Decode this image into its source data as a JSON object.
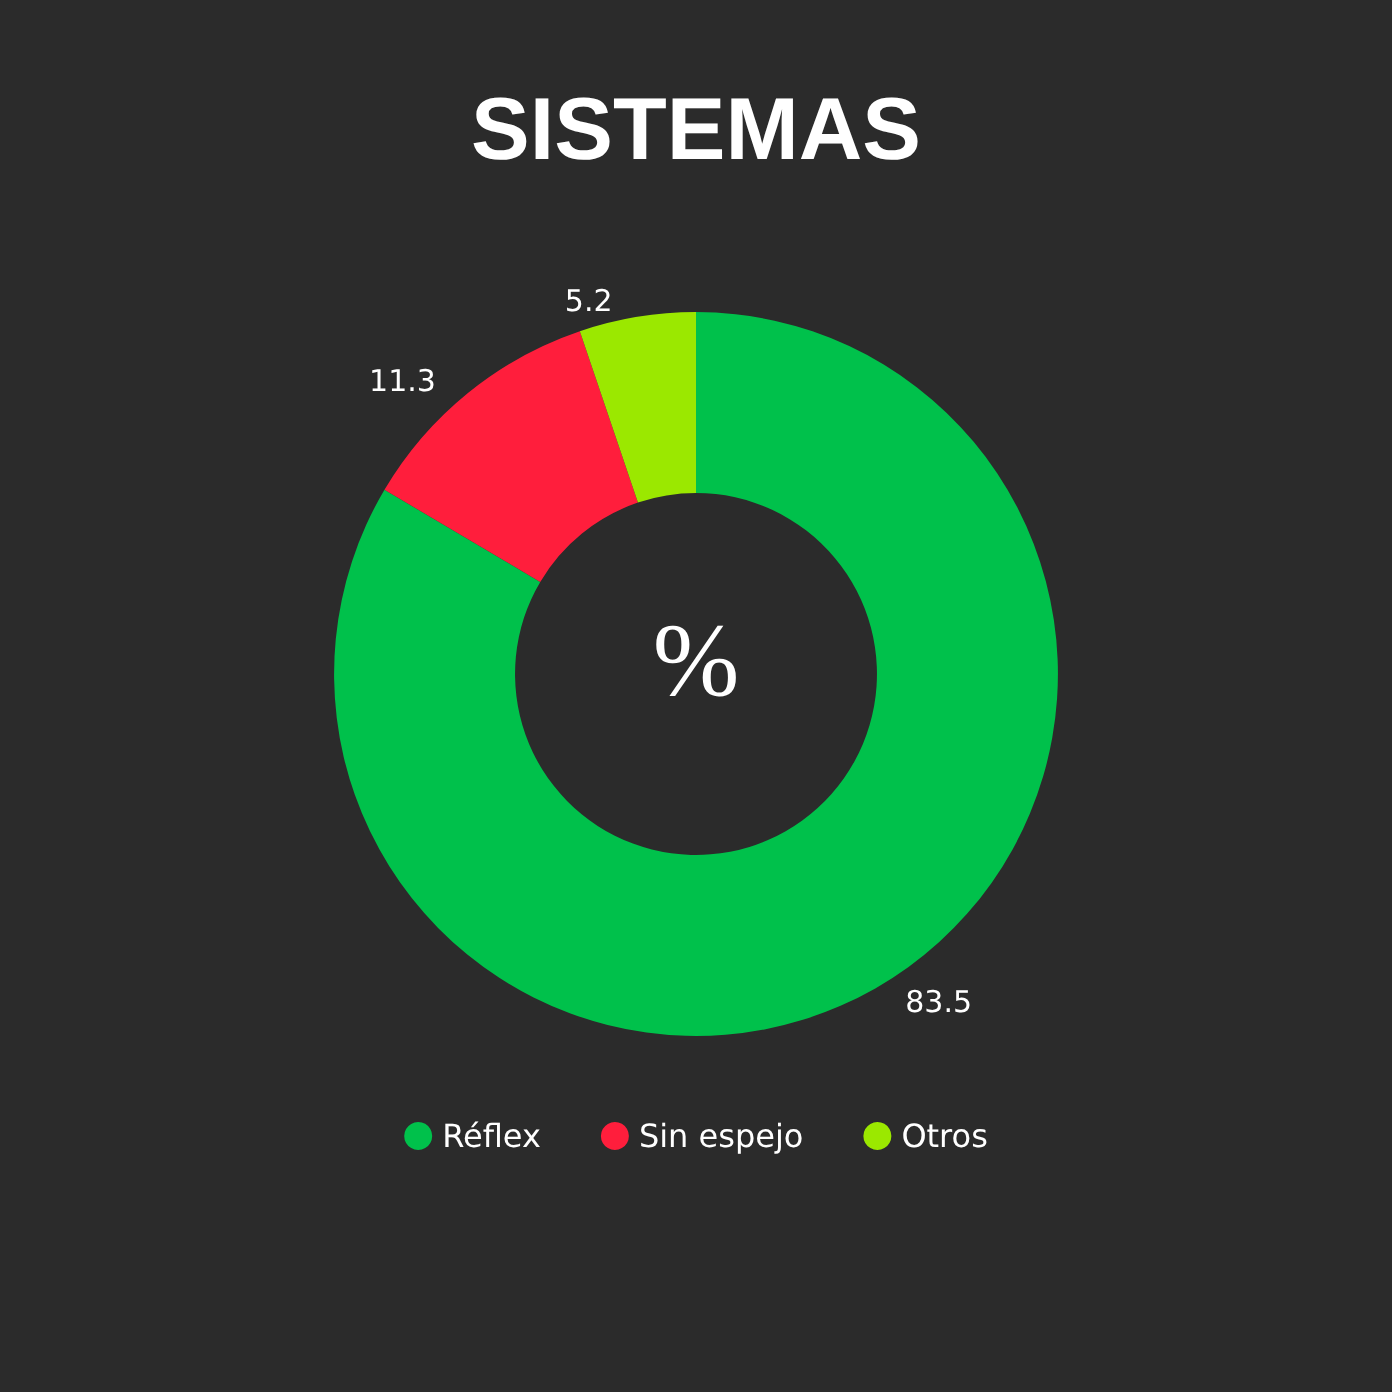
{
  "chart_data": {
    "type": "donut",
    "title": "SISTEMAS",
    "categories": [
      "Réflex",
      "Sin espejo",
      "Otros"
    ],
    "values": [
      83.5,
      11.3,
      5.2
    ],
    "colors": [
      "#00c14b",
      "#ff1e3c",
      "#9be800"
    ],
    "data_labels": true,
    "legend": "bottom",
    "annotations": [
      "%"
    ]
  }
}
